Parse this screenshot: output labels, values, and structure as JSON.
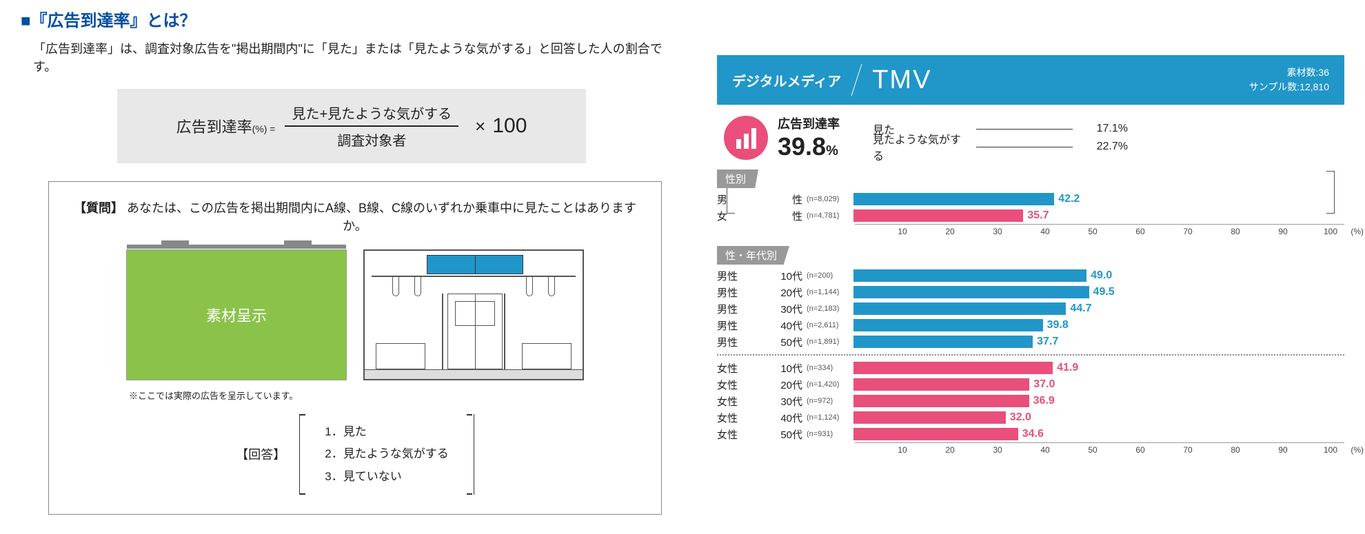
{
  "colors": {
    "blue": "#2196c9",
    "pink": "#e94f7a",
    "navy": "#034ea2",
    "gray": "#e8e8e8",
    "tag": "#999999"
  },
  "left": {
    "title_prefix": "■",
    "title": "『広告到達率』とは？",
    "description": "「広告到達率」は、調査対象広告を\"掲出期間内\"に「見た」または「見たような気がする」と回答した人の割合です。",
    "formula": {
      "lhs": "広告到達率",
      "lhs_unit": "(%) =",
      "numerator": "見た+見たような気がする",
      "denominator": "調査対象者",
      "times": "×",
      "hundred": "100"
    },
    "question_label": "【質問】",
    "question_text": "あなたは、この広告を掲出期間内にA線、B線、C線のいずれか乗車中に見たことはありますか。",
    "poster_text": "素材呈示",
    "note": "※ここでは実際の広告を呈示しています。",
    "answer_label": "【回答】",
    "answers": [
      "1．見た",
      "2．見たような気がする",
      "3．見ていない"
    ]
  },
  "right": {
    "category": "デジタルメディア",
    "title": "TMV",
    "meta1": "素材数:36",
    "meta2": "サンプル数:12,810",
    "reach_label": "広告到達率",
    "reach_value": "39.8",
    "reach_unit": "%",
    "breakdown": [
      {
        "name": "見た",
        "pct": "17.1%"
      },
      {
        "name": "見たような気がする",
        "pct": "22.7%"
      }
    ],
    "axis": {
      "min": 0,
      "max": 100,
      "step": 10,
      "unit": "(%)"
    },
    "section1": {
      "tag": "性別",
      "rows": [
        {
          "g": "男",
          "a": "性",
          "n": "(n=8,029)",
          "v": 42.2,
          "cls": "m"
        },
        {
          "g": "女",
          "a": "性",
          "n": "(n=4,781)",
          "v": 35.7,
          "cls": "f"
        }
      ]
    },
    "section2": {
      "tag": "性・年代別",
      "rows": [
        {
          "g": "男性",
          "a": "10代",
          "n": "(n=200)",
          "v": 49.0,
          "cls": "m"
        },
        {
          "g": "男性",
          "a": "20代",
          "n": "(n=1,144)",
          "v": 49.5,
          "cls": "m"
        },
        {
          "g": "男性",
          "a": "30代",
          "n": "(n=2,183)",
          "v": 44.7,
          "cls": "m"
        },
        {
          "g": "男性",
          "a": "40代",
          "n": "(n=2,611)",
          "v": 39.8,
          "cls": "m"
        },
        {
          "g": "男性",
          "a": "50代",
          "n": "(n=1,891)",
          "v": 37.7,
          "cls": "m"
        }
      ],
      "rows_f": [
        {
          "g": "女性",
          "a": "10代",
          "n": "(n=334)",
          "v": 41.9,
          "cls": "f"
        },
        {
          "g": "女性",
          "a": "20代",
          "n": "(n=1,420)",
          "v": 37.0,
          "cls": "f"
        },
        {
          "g": "女性",
          "a": "30代",
          "n": "(n=972)",
          "v": 36.9,
          "cls": "f"
        },
        {
          "g": "女性",
          "a": "40代",
          "n": "(n=1,124)",
          "v": 32.0,
          "cls": "f"
        },
        {
          "g": "女性",
          "a": "50代",
          "n": "(n=931)",
          "v": 34.6,
          "cls": "f"
        }
      ]
    }
  }
}
